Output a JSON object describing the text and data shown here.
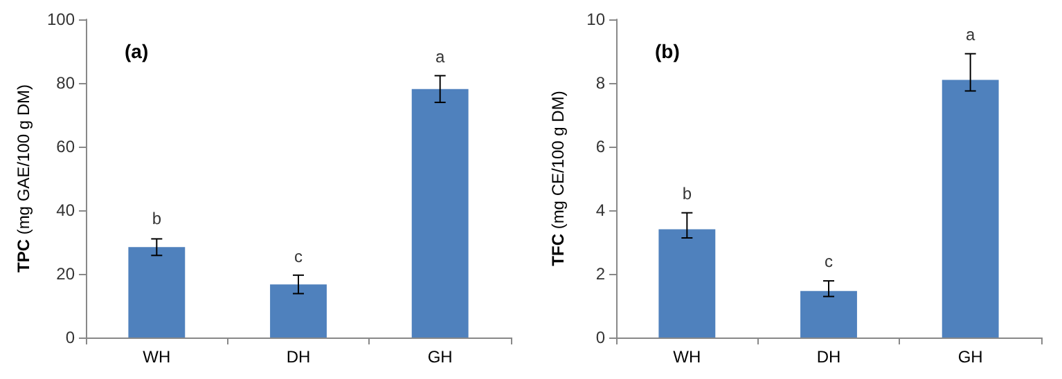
{
  "chart_data": [
    {
      "type": "bar",
      "categories": [
        "WH",
        "DH",
        "GH"
      ],
      "ylabel": "TPC (mg GAE/100 g DM)",
      "series": [
        {
          "color": "#4f81bd",
          "values": [
            28.4,
            16.7,
            78.1
          ],
          "errors": [
            2.6,
            2.9,
            4.2
          ]
        }
      ],
      "ylim": [
        0,
        100
      ],
      "yticks": [
        0,
        20,
        40,
        60,
        80,
        100
      ],
      "grid": false,
      "annotations": [
        "(a)",
        {
          "text": "b",
          "x": "WH",
          "y": 31.4
        },
        {
          "text": "c",
          "x": "DH",
          "y": 19.3
        },
        {
          "text": "a",
          "x": "GH",
          "y": 82.2
        }
      ]
    },
    {
      "type": "bar",
      "categories": [
        "WH",
        "DH",
        "GH"
      ],
      "ylabel": "TFC (mg CE/100 g DM)",
      "series": [
        {
          "color": "#4f81bd",
          "values": [
            3.4,
            1.46,
            8.1
          ],
          "errors": [
            [
              3.13,
              3.92
            ],
            [
              1.29,
              1.78
            ],
            [
              7.75,
              8.92
            ]
          ]
        }
      ],
      "ylim": [
        0,
        10
      ],
      "yticks": [
        0,
        2,
        4,
        6,
        8,
        10
      ],
      "grid": false,
      "annotations": [
        "(b)",
        {
          "text": "b",
          "x": "WH",
          "y": 3.92
        },
        {
          "text": "c",
          "x": "DH",
          "y": 1.78
        },
        {
          "text": "a",
          "x": "GH",
          "y": 8.92
        }
      ]
    }
  ]
}
